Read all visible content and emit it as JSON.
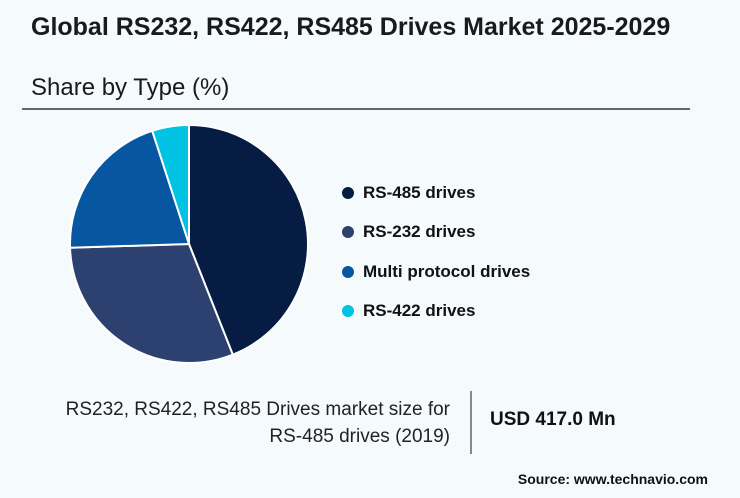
{
  "header": {
    "title": "Global RS232, RS422, RS485 Drives Market 2025-2029",
    "subtitle": "Share by Type (%)"
  },
  "chart_data": {
    "type": "pie",
    "title": "Global RS232, RS422, RS485 Drives Market 2025-2029",
    "subtitle": "Share by Type (%)",
    "legend_placement": "right",
    "categories": [
      "RS-485 drives",
      "RS-232 drives",
      "Multi protocol drives",
      "RS-422 drives"
    ],
    "values": [
      44,
      30.5,
      20.5,
      5
    ],
    "colors": [
      "#071c42",
      "#2d4170",
      "#0656a2",
      "#00c2e2"
    ]
  },
  "footer": {
    "label_line1": "RS232, RS422, RS485 Drives market size for",
    "label_line2": "RS-485 drives (2019)",
    "value": "USD 417.0 Mn",
    "source": "Source: www.technavio.com"
  }
}
